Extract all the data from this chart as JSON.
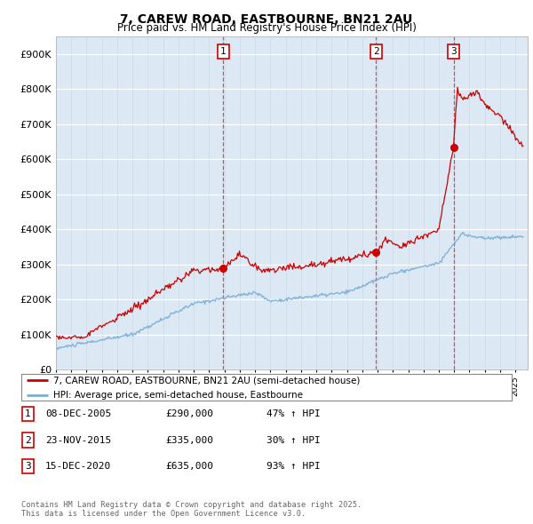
{
  "title_line1": "7, CAREW ROAD, EASTBOURNE, BN21 2AU",
  "title_line2": "Price paid vs. HM Land Registry's House Price Index (HPI)",
  "bg_color": "#dce9f5",
  "ylim": [
    0,
    950000
  ],
  "xlim_start": 1995.0,
  "xlim_end": 2025.8,
  "sale_prices": [
    290000,
    335000,
    635000
  ],
  "legend_line1": "7, CAREW ROAD, EASTBOURNE, BN21 2AU (semi-detached house)",
  "legend_line2": "HPI: Average price, semi-detached house, Eastbourne",
  "table_rows": [
    {
      "label": "1",
      "date": "08-DEC-2005",
      "price": "£290,000",
      "change": "47% ↑ HPI"
    },
    {
      "label": "2",
      "date": "23-NOV-2015",
      "price": "£335,000",
      "change": "30% ↑ HPI"
    },
    {
      "label": "3",
      "date": "15-DEC-2020",
      "price": "£635,000",
      "change": "93% ↑ HPI"
    }
  ],
  "footer": "Contains HM Land Registry data © Crown copyright and database right 2025.\nThis data is licensed under the Open Government Licence v3.0.",
  "red_color": "#cc0000",
  "blue_color": "#7aadd4",
  "sale_decimal": [
    2005.93,
    2015.9,
    2020.96
  ]
}
